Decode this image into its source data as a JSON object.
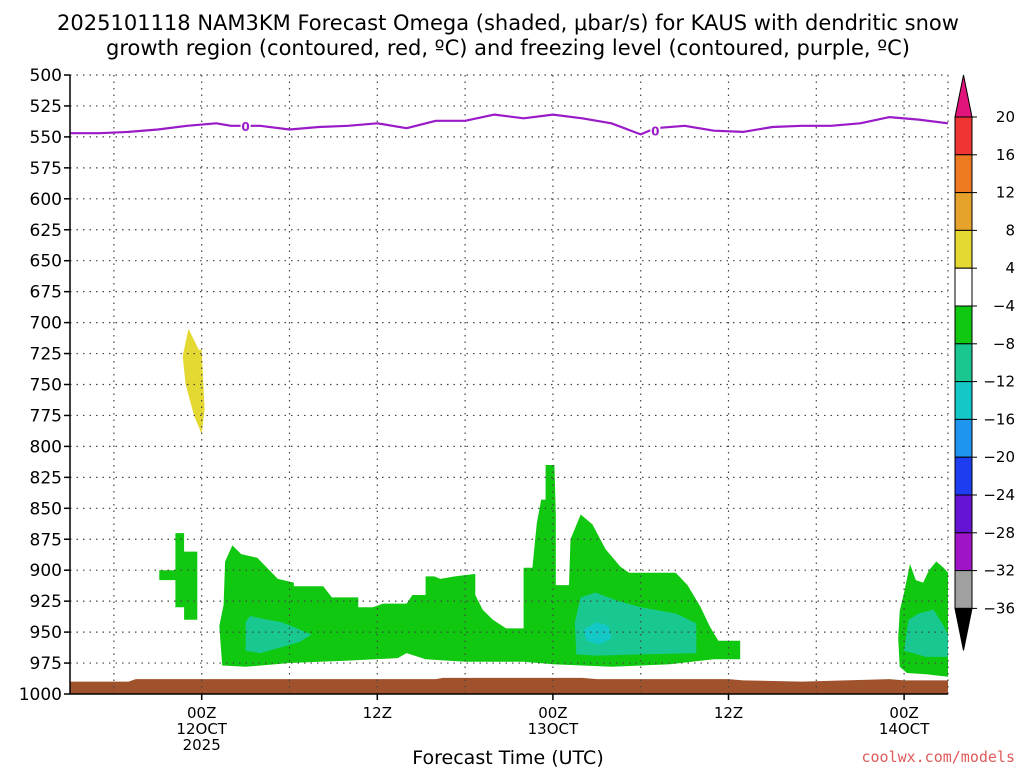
{
  "chart_data": {
    "type": "heatmap",
    "title_lines": [
      "2025101118 NAM3KM Forecast Omega (shaded, μbar/s) for KAUS with dendritic snow",
      "growth region (contoured, red, ºC) and freezing level (contoured, purple, ºC)"
    ],
    "xlabel": "Forecast Time (UTC)",
    "ylabel": "",
    "credit": "coolwx.com/models",
    "x_axis": {
      "unit": "hours from 2025-10-11 18Z",
      "range": [
        -3,
        57
      ],
      "ticks": [
        {
          "x": 6,
          "lines": [
            "00Z",
            "12OCT",
            "2025"
          ]
        },
        {
          "x": 18,
          "lines": [
            "12Z"
          ]
        },
        {
          "x": 30,
          "lines": [
            "00Z",
            "13OCT"
          ]
        },
        {
          "x": 42,
          "lines": [
            "12Z"
          ]
        },
        {
          "x": 54,
          "lines": [
            "00Z",
            "14OCT"
          ]
        }
      ]
    },
    "y_axis": {
      "unit": "hPa",
      "range": [
        1000,
        500
      ],
      "ticks": [
        500,
        525,
        550,
        575,
        600,
        625,
        650,
        675,
        700,
        725,
        750,
        775,
        800,
        825,
        850,
        875,
        900,
        925,
        950,
        975,
        1000
      ]
    },
    "grid": true,
    "colorbar": {
      "position": "right",
      "labels": [
        "20",
        "16",
        "12",
        "8",
        "4",
        "-4",
        "-8",
        "-12",
        "-16",
        "-20",
        "-24",
        "-28",
        "-32",
        "-36"
      ],
      "top_arrow_color": "#e0147a",
      "bottom_arrow_color": "#000000",
      "bins": [
        {
          "from": 16,
          "to": 20,
          "color": "#ee3434"
        },
        {
          "from": 12,
          "to": 16,
          "color": "#ee7a22"
        },
        {
          "from": 8,
          "to": 12,
          "color": "#e6a32c"
        },
        {
          "from": 4,
          "to": 8,
          "color": "#e4d832"
        },
        {
          "from": -4,
          "to": 4,
          "color": "#ffffff"
        },
        {
          "from": -8,
          "to": -4,
          "color": "#10c810"
        },
        {
          "from": -12,
          "to": -8,
          "color": "#18c890"
        },
        {
          "from": -16,
          "to": -12,
          "color": "#14c8c8"
        },
        {
          "from": -20,
          "to": -16,
          "color": "#1e96f0"
        },
        {
          "from": -24,
          "to": -20,
          "color": "#1e3cf0"
        },
        {
          "from": -28,
          "to": -24,
          "color": "#6414d2"
        },
        {
          "from": -32,
          "to": -28,
          "color": "#a014c8"
        },
        {
          "from": -36,
          "to": -32,
          "color": "#a0a0a0"
        }
      ]
    },
    "freezing_level": {
      "label": "0",
      "color": "#9a1ac8",
      "label_positions": [
        {
          "x": 9.0,
          "y": 541
        },
        {
          "x": 37.0,
          "y": 545
        }
      ],
      "points": [
        {
          "x": -3,
          "y": 547
        },
        {
          "x": -1,
          "y": 547
        },
        {
          "x": 1,
          "y": 546
        },
        {
          "x": 3,
          "y": 544
        },
        {
          "x": 5,
          "y": 541
        },
        {
          "x": 7,
          "y": 539
        },
        {
          "x": 8,
          "y": 541
        },
        {
          "x": 10,
          "y": 541
        },
        {
          "x": 12,
          "y": 544
        },
        {
          "x": 14,
          "y": 542
        },
        {
          "x": 16,
          "y": 541
        },
        {
          "x": 18,
          "y": 539
        },
        {
          "x": 20,
          "y": 543
        },
        {
          "x": 22,
          "y": 537
        },
        {
          "x": 24,
          "y": 537
        },
        {
          "x": 26,
          "y": 532
        },
        {
          "x": 28,
          "y": 535
        },
        {
          "x": 30,
          "y": 532
        },
        {
          "x": 32,
          "y": 535
        },
        {
          "x": 34,
          "y": 539
        },
        {
          "x": 36,
          "y": 548
        },
        {
          "x": 37,
          "y": 543
        },
        {
          "x": 39,
          "y": 541
        },
        {
          "x": 41,
          "y": 545
        },
        {
          "x": 43,
          "y": 546
        },
        {
          "x": 45,
          "y": 542
        },
        {
          "x": 47,
          "y": 541
        },
        {
          "x": 49,
          "y": 541
        },
        {
          "x": 51,
          "y": 539
        },
        {
          "x": 53,
          "y": 534
        },
        {
          "x": 55,
          "y": 536
        },
        {
          "x": 57,
          "y": 539
        }
      ]
    },
    "surface": {
      "color": "#a0522d",
      "points": [
        {
          "x": -3,
          "y": 990
        },
        {
          "x": 1,
          "y": 990
        },
        {
          "x": 1.5,
          "y": 988
        },
        {
          "x": 22,
          "y": 988
        },
        {
          "x": 22.5,
          "y": 987
        },
        {
          "x": 32,
          "y": 987
        },
        {
          "x": 33,
          "y": 988
        },
        {
          "x": 42,
          "y": 988
        },
        {
          "x": 43,
          "y": 989
        },
        {
          "x": 47,
          "y": 990
        },
        {
          "x": 50,
          "y": 989
        },
        {
          "x": 53,
          "y": 988
        },
        {
          "x": 54,
          "y": 989
        },
        {
          "x": 57,
          "y": 989
        }
      ]
    },
    "shaded_regions": [
      {
        "bin": "4 to 8",
        "color": "#e4d832",
        "points": [
          {
            "x": 4.7,
            "y": 727
          },
          {
            "x": 5.1,
            "y": 705
          },
          {
            "x": 5.8,
            "y": 722
          },
          {
            "x": 6.0,
            "y": 722
          },
          {
            "x": 6.2,
            "y": 770
          },
          {
            "x": 6.0,
            "y": 790
          },
          {
            "x": 5.5,
            "y": 776
          },
          {
            "x": 4.9,
            "y": 750
          }
        ]
      },
      {
        "bin": "-8 to -4",
        "color": "#10c810",
        "points": [
          {
            "x": 3.1,
            "y": 900
          },
          {
            "x": 4.2,
            "y": 900
          },
          {
            "x": 4.2,
            "y": 870
          },
          {
            "x": 4.8,
            "y": 870
          },
          {
            "x": 4.8,
            "y": 885
          },
          {
            "x": 5.7,
            "y": 885
          },
          {
            "x": 5.7,
            "y": 940
          },
          {
            "x": 4.8,
            "y": 940
          },
          {
            "x": 4.8,
            "y": 930
          },
          {
            "x": 4.2,
            "y": 930
          },
          {
            "x": 4.2,
            "y": 908
          },
          {
            "x": 3.1,
            "y": 908
          }
        ]
      },
      {
        "bin": "-8 to -4",
        "color": "#10c810",
        "points": [
          {
            "x": 7.2,
            "y": 945
          },
          {
            "x": 7.5,
            "y": 928
          },
          {
            "x": 7.6,
            "y": 893
          },
          {
            "x": 8.1,
            "y": 880
          },
          {
            "x": 8.7,
            "y": 887
          },
          {
            "x": 9.8,
            "y": 890
          },
          {
            "x": 11.2,
            "y": 907
          },
          {
            "x": 12.3,
            "y": 910
          },
          {
            "x": 12.3,
            "y": 913
          },
          {
            "x": 14.3,
            "y": 913
          },
          {
            "x": 14.9,
            "y": 922
          },
          {
            "x": 16.7,
            "y": 922
          },
          {
            "x": 16.7,
            "y": 930
          },
          {
            "x": 17.7,
            "y": 930
          },
          {
            "x": 18.4,
            "y": 927
          },
          {
            "x": 20.0,
            "y": 927
          },
          {
            "x": 20.4,
            "y": 920
          },
          {
            "x": 21.3,
            "y": 920
          },
          {
            "x": 21.3,
            "y": 905
          },
          {
            "x": 21.9,
            "y": 905
          },
          {
            "x": 22.3,
            "y": 907
          },
          {
            "x": 23.3,
            "y": 905
          },
          {
            "x": 24.7,
            "y": 903
          },
          {
            "x": 24.7,
            "y": 920
          },
          {
            "x": 25.2,
            "y": 932
          },
          {
            "x": 25.9,
            "y": 940
          },
          {
            "x": 26.8,
            "y": 947
          },
          {
            "x": 28.0,
            "y": 947
          },
          {
            "x": 28.0,
            "y": 898
          },
          {
            "x": 28.6,
            "y": 898
          },
          {
            "x": 28.9,
            "y": 862
          },
          {
            "x": 29.2,
            "y": 843
          },
          {
            "x": 29.5,
            "y": 843
          },
          {
            "x": 29.5,
            "y": 815
          },
          {
            "x": 30.1,
            "y": 815
          },
          {
            "x": 30.2,
            "y": 855
          },
          {
            "x": 30.2,
            "y": 912
          },
          {
            "x": 31.1,
            "y": 912
          },
          {
            "x": 31.2,
            "y": 875
          },
          {
            "x": 31.9,
            "y": 855
          },
          {
            "x": 32.7,
            "y": 863
          },
          {
            "x": 33.6,
            "y": 883
          },
          {
            "x": 34.6,
            "y": 897
          },
          {
            "x": 35.2,
            "y": 902
          },
          {
            "x": 38.4,
            "y": 902
          },
          {
            "x": 39.2,
            "y": 912
          },
          {
            "x": 40.1,
            "y": 930
          },
          {
            "x": 40.7,
            "y": 945
          },
          {
            "x": 41.3,
            "y": 957
          },
          {
            "x": 42.8,
            "y": 957
          },
          {
            "x": 42.8,
            "y": 972
          },
          {
            "x": 41.0,
            "y": 972
          },
          {
            "x": 38.0,
            "y": 976
          },
          {
            "x": 34.0,
            "y": 978
          },
          {
            "x": 30.0,
            "y": 976
          },
          {
            "x": 28.0,
            "y": 974
          },
          {
            "x": 24.0,
            "y": 974
          },
          {
            "x": 21.3,
            "y": 972
          },
          {
            "x": 20.0,
            "y": 967
          },
          {
            "x": 19.4,
            "y": 971
          },
          {
            "x": 16.0,
            "y": 973
          },
          {
            "x": 12.0,
            "y": 975
          },
          {
            "x": 9.0,
            "y": 978
          },
          {
            "x": 7.4,
            "y": 977
          }
        ]
      },
      {
        "bin": "-8 to -4",
        "color": "#10c810",
        "points": [
          {
            "x": 53.7,
            "y": 978
          },
          {
            "x": 53.6,
            "y": 955
          },
          {
            "x": 53.7,
            "y": 933
          },
          {
            "x": 54.0,
            "y": 918
          },
          {
            "x": 54.4,
            "y": 895
          },
          {
            "x": 54.8,
            "y": 908
          },
          {
            "x": 55.3,
            "y": 910
          },
          {
            "x": 55.7,
            "y": 900
          },
          {
            "x": 56.2,
            "y": 893
          },
          {
            "x": 56.7,
            "y": 898
          },
          {
            "x": 57.0,
            "y": 902
          },
          {
            "x": 57.0,
            "y": 986
          },
          {
            "x": 55.5,
            "y": 984
          },
          {
            "x": 54.2,
            "y": 983
          }
        ]
      },
      {
        "bin": "-12 to -8",
        "color": "#18c890",
        "points": [
          {
            "x": 9.0,
            "y": 942
          },
          {
            "x": 9.3,
            "y": 937
          },
          {
            "x": 10.5,
            "y": 940
          },
          {
            "x": 11.5,
            "y": 942
          },
          {
            "x": 12.5,
            "y": 947
          },
          {
            "x": 13.5,
            "y": 952
          },
          {
            "x": 12.7,
            "y": 958
          },
          {
            "x": 11.5,
            "y": 962
          },
          {
            "x": 10.0,
            "y": 967
          },
          {
            "x": 9.0,
            "y": 965
          }
        ]
      },
      {
        "bin": "-12 to -8",
        "color": "#18c890",
        "points": [
          {
            "x": 31.6,
            "y": 968
          },
          {
            "x": 31.5,
            "y": 942
          },
          {
            "x": 31.9,
            "y": 922
          },
          {
            "x": 32.9,
            "y": 918
          },
          {
            "x": 34.5,
            "y": 925
          },
          {
            "x": 36.0,
            "y": 930
          },
          {
            "x": 38.4,
            "y": 935
          },
          {
            "x": 39.8,
            "y": 943
          },
          {
            "x": 39.8,
            "y": 967
          },
          {
            "x": 36.0,
            "y": 968
          },
          {
            "x": 33.0,
            "y": 969
          }
        ]
      },
      {
        "bin": "-12 to -8",
        "color": "#18c890",
        "points": [
          {
            "x": 54.0,
            "y": 965
          },
          {
            "x": 54.3,
            "y": 940
          },
          {
            "x": 55.0,
            "y": 935
          },
          {
            "x": 56.0,
            "y": 932
          },
          {
            "x": 56.7,
            "y": 945
          },
          {
            "x": 57.0,
            "y": 952
          },
          {
            "x": 57.0,
            "y": 970
          },
          {
            "x": 55.5,
            "y": 970
          }
        ]
      },
      {
        "bin": "-16 to -12",
        "color": "#14c8c8",
        "points": [
          {
            "x": 32.1,
            "y": 948
          },
          {
            "x": 33.0,
            "y": 942
          },
          {
            "x": 33.8,
            "y": 945
          },
          {
            "x": 34.0,
            "y": 955
          },
          {
            "x": 33.2,
            "y": 960
          },
          {
            "x": 32.3,
            "y": 957
          }
        ]
      }
    ]
  }
}
